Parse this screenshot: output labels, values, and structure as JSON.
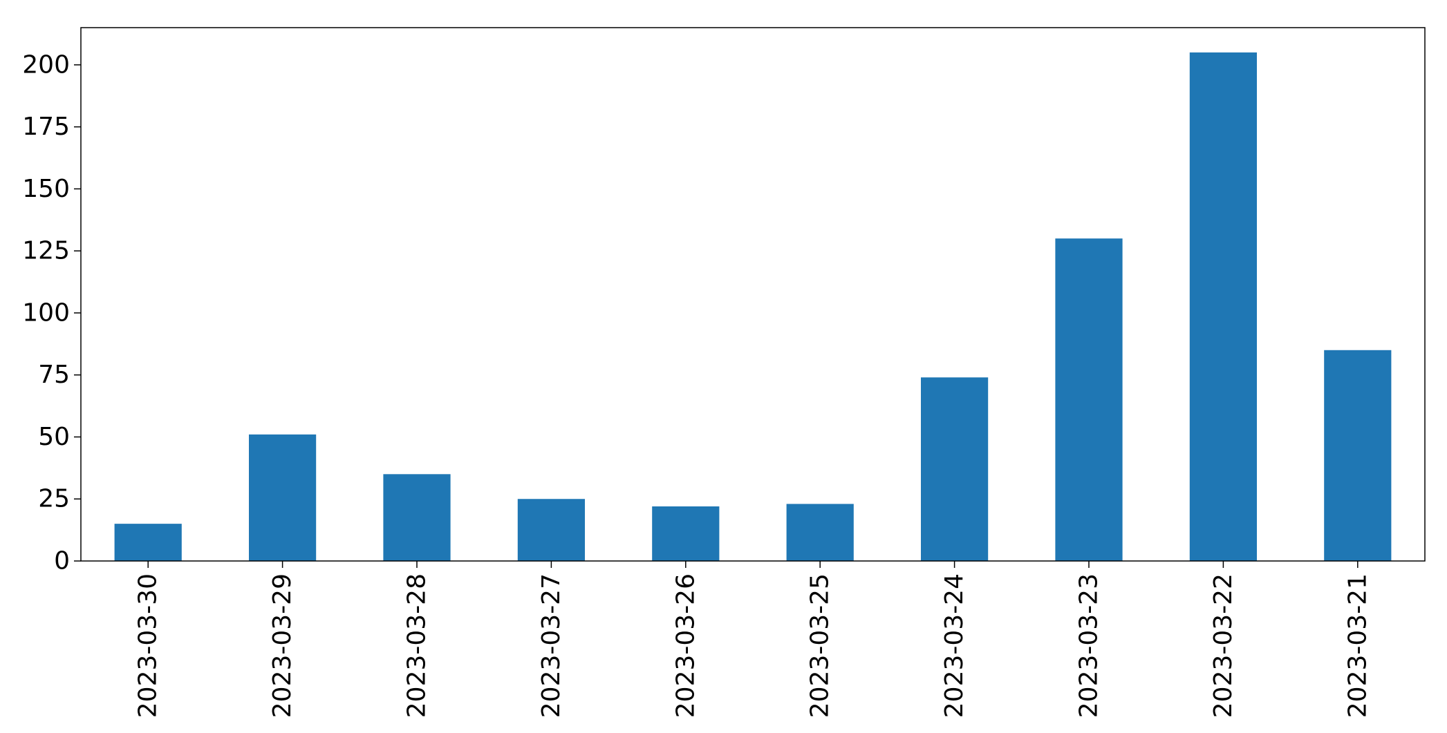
{
  "chart_data": {
    "type": "bar",
    "categories": [
      "2023-03-30",
      "2023-03-29",
      "2023-03-28",
      "2023-03-27",
      "2023-03-26",
      "2023-03-25",
      "2023-03-24",
      "2023-03-23",
      "2023-03-22",
      "2023-03-21"
    ],
    "values": [
      15,
      51,
      35,
      25,
      22,
      23,
      74,
      130,
      205,
      85
    ],
    "ylim": [
      0,
      215
    ],
    "yticks": [
      0,
      25,
      50,
      75,
      100,
      125,
      150,
      175,
      200
    ],
    "bar_color": "#1f77b4",
    "grid": false,
    "legend": "none",
    "xtick_rotation": "vertical"
  }
}
